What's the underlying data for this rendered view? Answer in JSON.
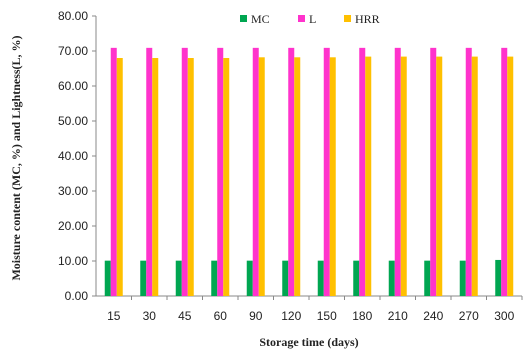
{
  "chart_data": {
    "type": "bar",
    "categories": [
      "15",
      "30",
      "45",
      "60",
      "90",
      "120",
      "150",
      "180",
      "210",
      "240",
      "270",
      "300"
    ],
    "series": [
      {
        "name": "MC",
        "color": "#00a651",
        "values": [
          10.1,
          10.1,
          10.1,
          10.1,
          10.1,
          10.1,
          10.1,
          10.1,
          10.1,
          10.1,
          10.1,
          10.3
        ]
      },
      {
        "name": "L",
        "color": "#ff33cc",
        "values": [
          70.9,
          70.9,
          70.9,
          70.9,
          70.9,
          70.9,
          70.9,
          70.9,
          70.9,
          70.9,
          70.9,
          70.9
        ]
      },
      {
        "name": "HRR",
        "color": "#ffc000",
        "values": [
          68.0,
          68.0,
          68.0,
          68.0,
          68.2,
          68.2,
          68.2,
          68.4,
          68.4,
          68.4,
          68.4,
          68.4
        ]
      }
    ],
    "xlabel": "Storage time (days)",
    "ylabel": "Moisture content (MC, %) and Lightness(L, %)",
    "ylim": [
      0,
      80
    ],
    "yticks": [
      "0.00",
      "10.00",
      "20.00",
      "30.00",
      "40.00",
      "50.00",
      "60.00",
      "70.00",
      "80.00"
    ],
    "legend_position": "top-center",
    "grid": false
  }
}
